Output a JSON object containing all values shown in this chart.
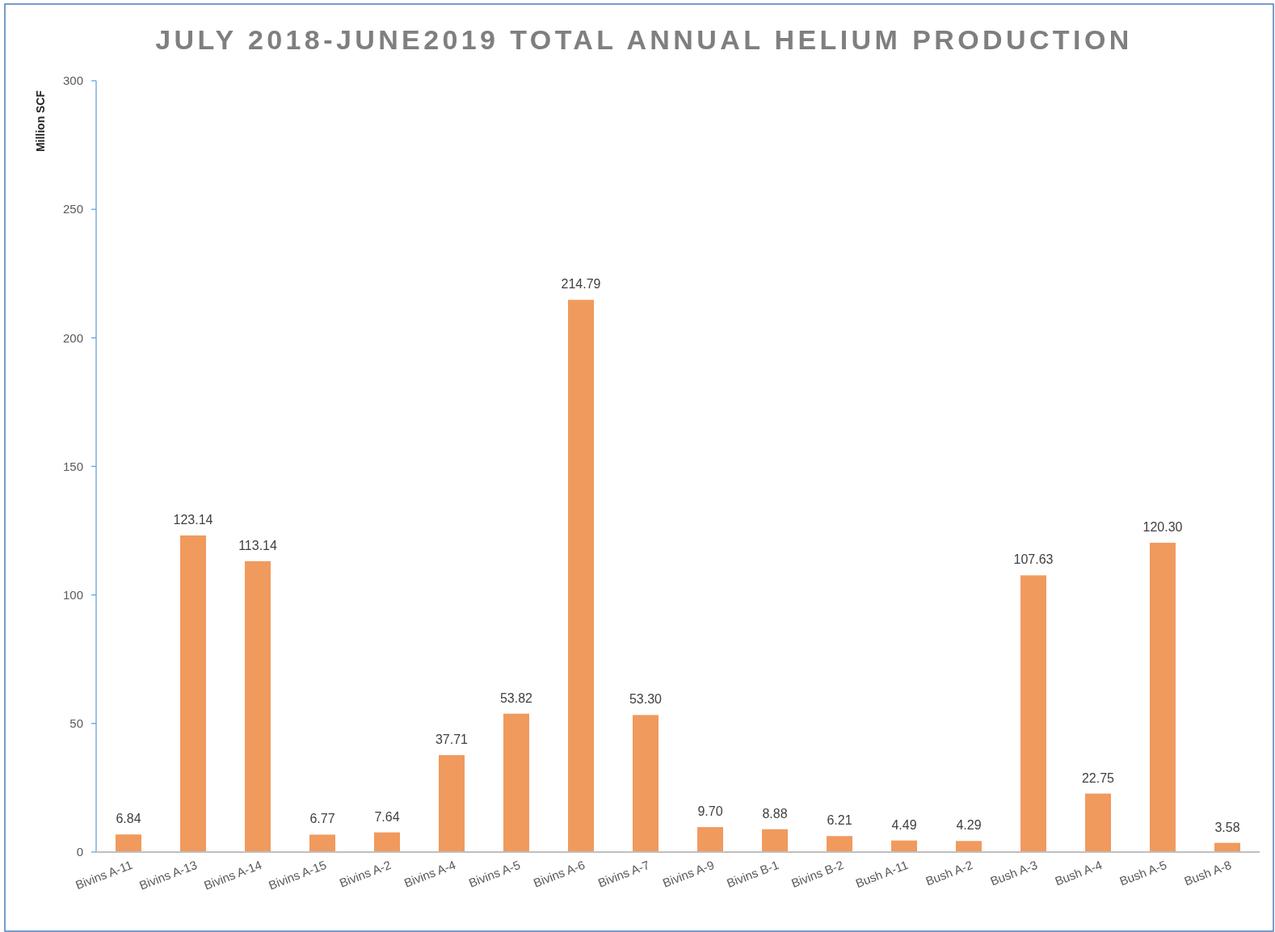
{
  "chart_data": {
    "type": "bar",
    "title": "JULY 2018-JUNE2019 TOTAL ANNUAL HELIUM PRODUCTION",
    "ylabel": "Million SCF",
    "categories": [
      "Bivins A-11",
      "Bivins A-13",
      "Bivins A-14",
      "Bivins A-15",
      "Bivins A-2",
      "Bivins A-4",
      "Bivins A-5",
      "Bivins A-6",
      "Bivins A-7",
      "Bivins A-9",
      "Bivins B-1",
      "Bivins B-2",
      "Bush A-11",
      "Bush A-2",
      "Bush A-3",
      "Bush A-4",
      "Bush A-5",
      "Bush A-8"
    ],
    "values": [
      6.84,
      123.14,
      113.14,
      6.77,
      7.64,
      37.71,
      53.82,
      214.79,
      53.3,
      9.7,
      8.88,
      6.21,
      4.49,
      4.29,
      107.63,
      22.75,
      120.3,
      3.58
    ],
    "value_labels": [
      "6.84",
      "123.14",
      "113.14",
      "6.77",
      "7.64",
      "37.71",
      "53.82",
      "214.79",
      "53.30",
      "9.70",
      "8.88",
      "6.21",
      "4.49",
      "4.29",
      "107.63",
      "22.75",
      "120.30",
      "3.58"
    ],
    "color": "#f09a5e",
    "ylim": [
      0,
      300
    ],
    "yticks": [
      0,
      50,
      100,
      150,
      200,
      250,
      300
    ],
    "grid": false
  }
}
